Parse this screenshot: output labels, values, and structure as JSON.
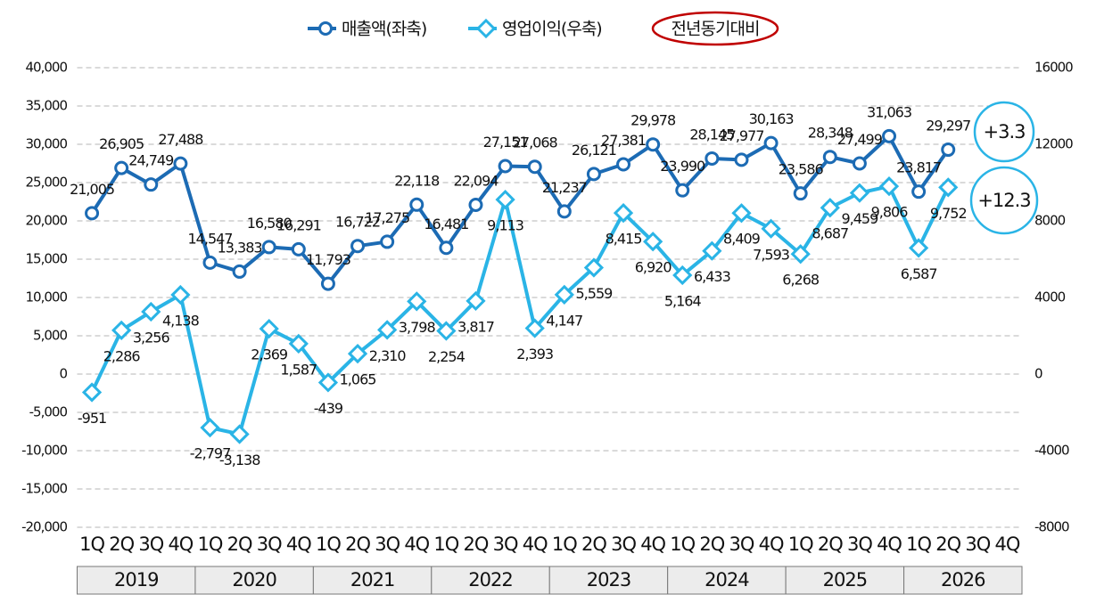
{
  "chart_data": {
    "type": "line",
    "legend_note": "전년동기대비",
    "categories": [
      "1Q",
      "2Q",
      "3Q",
      "4Q",
      "1Q",
      "2Q",
      "3Q",
      "4Q",
      "1Q",
      "2Q",
      "3Q",
      "4Q",
      "1Q",
      "2Q",
      "3Q",
      "4Q",
      "1Q",
      "2Q",
      "3Q",
      "4Q",
      "1Q",
      "2Q",
      "3Q",
      "4Q",
      "1Q",
      "2Q",
      "3Q",
      "4Q",
      "1Q",
      "2Q",
      "3Q",
      "4Q"
    ],
    "year_groups": [
      "2019",
      "2020",
      "2021",
      "2022",
      "2023",
      "2024",
      "2025",
      "2026"
    ],
    "series": [
      {
        "name": "매출액(좌축)",
        "color": "#1c6bb4",
        "marker": "circle",
        "axis": "y",
        "values": [
          21005,
          26905,
          24749,
          27488,
          14547,
          13383,
          16580,
          16291,
          11793,
          16722,
          17275,
          22118,
          16481,
          22094,
          27151,
          27068,
          21237,
          26121,
          27381,
          29978,
          23990,
          28145,
          27977,
          30163,
          23586,
          28348,
          27499,
          31063,
          23817,
          29297,
          null,
          null
        ],
        "value_labels": [
          "21,005",
          "26,905",
          "24,749",
          "27,488",
          "14,547",
          "13,383",
          "16,580",
          "16,291",
          "11,793",
          "16,722",
          "17,275",
          "22,118",
          "16,481",
          "22,094",
          "27,151",
          "27,068",
          "21,237",
          "26,121",
          "27,381",
          "29,978",
          "23,990",
          "28,145",
          "27,977",
          "30,163",
          "23,586",
          "28,348",
          "27,499",
          "31,063",
          "23,817",
          "29,297",
          null,
          null
        ]
      },
      {
        "name": "영업이익(우축)",
        "color": "#2ab4e6",
        "marker": "diamond",
        "axis": "y2",
        "values": [
          -951,
          2286,
          3256,
          4138,
          -2797,
          -3138,
          2369,
          1587,
          -439,
          1065,
          2310,
          3798,
          2254,
          3817,
          9113,
          2393,
          4147,
          5559,
          8415,
          6920,
          5164,
          6433,
          8409,
          7593,
          6268,
          8687,
          9459,
          9806,
          6587,
          9752,
          null,
          null
        ],
        "value_labels": [
          "-951",
          "2,286",
          "3,256",
          "4,138",
          "-2,797",
          "-3,138",
          "2,369",
          "1,587",
          "-439",
          "1,065",
          "2,310",
          "3,798",
          "2,254",
          "3,817",
          "9,113",
          "2,393",
          "4,147",
          "5,559",
          "8,415",
          "6,920",
          "5,164",
          "6,433",
          "8,409",
          "7,593",
          "6,268",
          "8,687",
          "9,459",
          "9,806",
          "6,587",
          "9,752",
          null,
          null
        ]
      }
    ],
    "ylim": [
      -20000,
      40000
    ],
    "yticks": [
      {
        "value": -20000,
        "label": "-20,000"
      },
      {
        "value": -15000,
        "label": "-15,000"
      },
      {
        "value": -10000,
        "label": "-10,000"
      },
      {
        "value": -5000,
        "label": "-5,000"
      },
      0,
      {
        "value": 5000,
        "label": "5,000"
      },
      {
        "value": 10000,
        "label": "10,000"
      },
      {
        "value": 15000,
        "label": "15,000"
      },
      {
        "value": 20000,
        "label": "20,000"
      },
      {
        "value": 25000,
        "label": "25,000"
      },
      {
        "value": 30000,
        "label": "30,000"
      },
      {
        "value": 35000,
        "label": "35,000"
      },
      {
        "value": 40000,
        "label": "40,000"
      }
    ],
    "y2lim": [
      -8000,
      16000
    ],
    "y2ticks": [
      -8000,
      -4000,
      0,
      4000,
      8000,
      12000,
      16000
    ],
    "grid": true,
    "annotations": [
      "+3.3",
      "+12.3"
    ]
  }
}
